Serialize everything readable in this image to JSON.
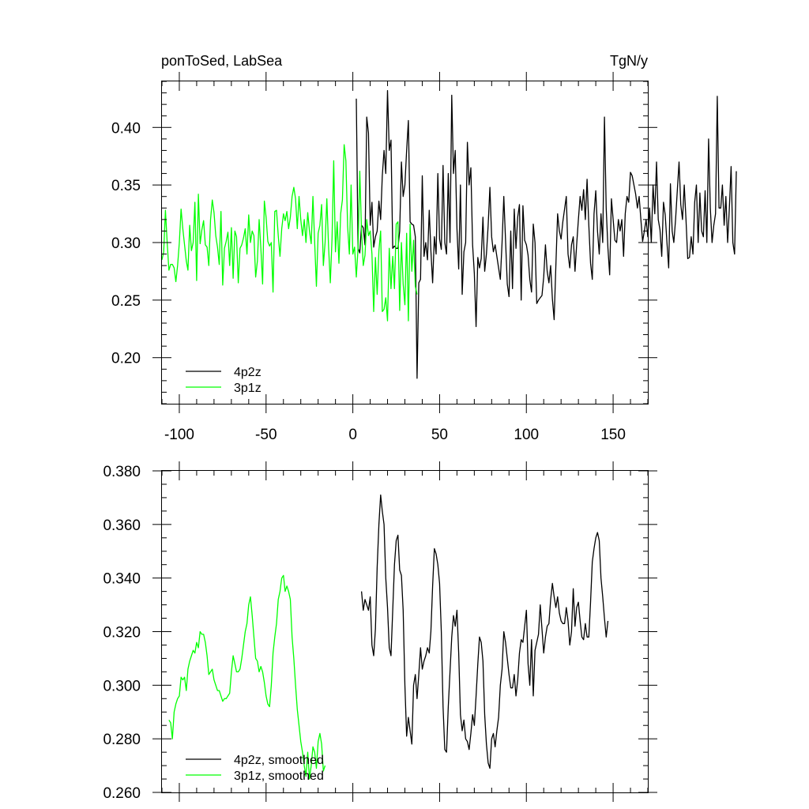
{
  "chart_data": [
    {
      "type": "line",
      "title_left": "ponToSed, LabSea",
      "title_right": "TgN/y",
      "xlim": [
        -110,
        170
      ],
      "ylim": [
        0.16,
        0.44
      ],
      "x_ticks": [
        -100,
        -50,
        0,
        50,
        100,
        150
      ],
      "x_tick_labels": [
        "-100",
        "-50",
        "0",
        "50",
        "100",
        "150"
      ],
      "y_ticks": [
        0.2,
        0.25,
        0.3,
        0.35,
        0.4
      ],
      "y_tick_labels": [
        "0.20",
        "0.25",
        "0.30",
        "0.35",
        "0.40"
      ],
      "legend_position": "bottom-left",
      "series": [
        {
          "name": "4p2z",
          "color": "#000000",
          "x_start": 2,
          "x_step": 1,
          "values": [
            0.425,
            0.295,
            0.291,
            0.315,
            0.313,
            0.298,
            0.409,
            0.395,
            0.315,
            0.335,
            0.296,
            0.305,
            0.31,
            0.336,
            0.32,
            0.358,
            0.38,
            0.36,
            0.432,
            0.38,
            0.389,
            0.295,
            0.297,
            0.295,
            0.295,
            0.31,
            0.37,
            0.34,
            0.35,
            0.38,
            0.406,
            0.318,
            0.316,
            0.315,
            0.305,
            0.182,
            0.265,
            0.268,
            0.358,
            0.288,
            0.3,
            0.285,
            0.328,
            0.293,
            0.265,
            0.305,
            0.29,
            0.36,
            0.303,
            0.294,
            0.367,
            0.3,
            0.29,
            0.36,
            0.3,
            0.428,
            0.36,
            0.38,
            0.312,
            0.277,
            0.35,
            0.255,
            0.292,
            0.3,
            0.387,
            0.35,
            0.365,
            0.298,
            0.273,
            0.227,
            0.287,
            0.278,
            0.286,
            0.322,
            0.275,
            0.29,
            0.315,
            0.348,
            0.305,
            0.292,
            0.298,
            0.288,
            0.278,
            0.268,
            0.3,
            0.34,
            0.302,
            0.264,
            0.253,
            0.31,
            0.26,
            0.329,
            0.295,
            0.322,
            0.333,
            0.25,
            0.332,
            0.302,
            0.298,
            0.289,
            0.268,
            0.257,
            0.316,
            0.3,
            0.247,
            0.25,
            0.252,
            0.254,
            0.27,
            0.298,
            0.275,
            0.265,
            0.28,
            0.251,
            0.233,
            0.28,
            0.325,
            0.31,
            0.303,
            0.318,
            0.329,
            0.34,
            0.29,
            0.278,
            0.298,
            0.305,
            0.275,
            0.298,
            0.32,
            0.34,
            0.328,
            0.346,
            0.32,
            0.355,
            0.315,
            0.282,
            0.268,
            0.325,
            0.345,
            0.31,
            0.29,
            0.325,
            0.3,
            0.409,
            0.33,
            0.295,
            0.272,
            0.338,
            0.32,
            0.302,
            0.3,
            0.32,
            0.31,
            0.32,
            0.288,
            0.325,
            0.34,
            0.335,
            0.361,
            0.358,
            0.35,
            0.342,
            0.33,
            0.34,
            0.32,
            0.301,
            0.31,
            0.32,
            0.305,
            0.33,
            0.3,
            0.35,
            0.325,
            0.37,
            0.32,
            0.311,
            0.288,
            0.335,
            0.324,
            0.3,
            0.278,
            0.351,
            0.31,
            0.3,
            0.32,
            0.345,
            0.37,
            0.333,
            0.32,
            0.35,
            0.32,
            0.286,
            0.287,
            0.305,
            0.29,
            0.335,
            0.35,
            0.3,
            0.343,
            0.31,
            0.305,
            0.345,
            0.3,
            0.39,
            0.33,
            0.3,
            0.315,
            0.325,
            0.427,
            0.33,
            0.33,
            0.35,
            0.315,
            0.34,
            0.3,
            0.33,
            0.366,
            0.3,
            0.29,
            0.362
          ]
        },
        {
          "name": "3p1z",
          "color": "#00ff00",
          "x_start": -110,
          "x_step": 1,
          "values": [
            0.285,
            0.292,
            0.328,
            0.3,
            0.276,
            0.281,
            0.281,
            0.278,
            0.266,
            0.28,
            0.3,
            0.329,
            0.312,
            0.298,
            0.284,
            0.276,
            0.315,
            0.293,
            0.3,
            0.335,
            0.267,
            0.342,
            0.299,
            0.311,
            0.319,
            0.298,
            0.296,
            0.28,
            0.32,
            0.337,
            0.326,
            0.306,
            0.296,
            0.281,
            0.327,
            0.263,
            0.295,
            0.301,
            0.309,
            0.28,
            0.313,
            0.269,
            0.31,
            0.305,
            0.265,
            0.295,
            0.298,
            0.304,
            0.312,
            0.29,
            0.324,
            0.3,
            0.31,
            0.306,
            0.27,
            0.284,
            0.32,
            0.295,
            0.264,
            0.336,
            0.322,
            0.301,
            0.297,
            0.3,
            0.257,
            0.327,
            0.328,
            0.306,
            0.288,
            0.312,
            0.325,
            0.319,
            0.327,
            0.312,
            0.322,
            0.34,
            0.348,
            0.338,
            0.312,
            0.34,
            0.32,
            0.306,
            0.32,
            0.3,
            0.326,
            0.31,
            0.299,
            0.34,
            0.3,
            0.262,
            0.308,
            0.315,
            0.333,
            0.28,
            0.3,
            0.338,
            0.296,
            0.265,
            0.304,
            0.371,
            0.292,
            0.318,
            0.282,
            0.325,
            0.337,
            0.385,
            0.371,
            0.314,
            0.29,
            0.35,
            0.29,
            0.296,
            0.27,
            0.295,
            0.362,
            0.31,
            0.28,
            0.289,
            0.32,
            0.306,
            0.31,
            0.29,
            0.24,
            0.287,
            0.255,
            0.293,
            0.31,
            0.24,
            0.242,
            0.252,
            0.232,
            0.295,
            0.26,
            0.288,
            0.26,
            0.316,
            0.318,
            0.241,
            0.3,
            0.264,
            0.246,
            0.308,
            0.232,
            0.316,
            0.275,
            0.302,
            0.262,
            0.255
          ]
        }
      ]
    },
    {
      "type": "line",
      "xlim": [
        -110,
        170
      ],
      "ylim": [
        0.26,
        0.38
      ],
      "y_ticks": [
        0.26,
        0.28,
        0.3,
        0.32,
        0.34,
        0.36,
        0.38
      ],
      "y_tick_labels": [
        "0.260",
        "0.280",
        "0.300",
        "0.320",
        "0.340",
        "0.360",
        "0.380"
      ],
      "legend_position": "bottom-left",
      "series": [
        {
          "name": "4p2z, smoothed",
          "color": "#000000",
          "x_start": 5,
          "x_step": 1,
          "values": [
            0.335,
            0.328,
            0.332,
            0.33,
            0.328,
            0.333,
            0.315,
            0.311,
            0.321,
            0.344,
            0.36,
            0.371,
            0.365,
            0.36,
            0.34,
            0.329,
            0.314,
            0.311,
            0.328,
            0.345,
            0.354,
            0.356,
            0.343,
            0.341,
            0.328,
            0.3,
            0.281,
            0.288,
            0.283,
            0.278,
            0.3,
            0.304,
            0.295,
            0.304,
            0.314,
            0.306,
            0.309,
            0.311,
            0.314,
            0.312,
            0.32,
            0.337,
            0.351,
            0.349,
            0.345,
            0.338,
            0.32,
            0.292,
            0.276,
            0.275,
            0.292,
            0.305,
            0.318,
            0.326,
            0.322,
            0.328,
            0.312,
            0.289,
            0.283,
            0.287,
            0.28,
            0.279,
            0.276,
            0.282,
            0.289,
            0.285,
            0.296,
            0.308,
            0.318,
            0.316,
            0.309,
            0.289,
            0.278,
            0.271,
            0.269,
            0.28,
            0.282,
            0.277,
            0.283,
            0.288,
            0.3,
            0.306,
            0.32,
            0.316,
            0.31,
            0.304,
            0.299,
            0.299,
            0.304,
            0.296,
            0.302,
            0.312,
            0.317,
            0.316,
            0.322,
            0.328,
            0.308,
            0.3,
            0.317,
            0.296,
            0.313,
            0.316,
            0.319,
            0.33,
            0.321,
            0.312,
            0.318,
            0.322,
            0.323,
            0.332,
            0.338,
            0.333,
            0.329,
            0.333,
            0.327,
            0.324,
            0.323,
            0.323,
            0.329,
            0.324,
            0.315,
            0.32,
            0.336,
            0.322,
            0.329,
            0.331,
            0.324,
            0.318,
            0.317,
            0.323,
            0.318,
            0.318,
            0.331,
            0.346,
            0.351,
            0.355,
            0.357,
            0.354,
            0.34,
            0.333,
            0.325,
            0.318,
            0.324
          ]
        },
        {
          "name": "3p1z, smoothed",
          "color": "#00ff00",
          "x_start": -106,
          "x_step": 1,
          "values": [
            0.287,
            0.286,
            0.28,
            0.29,
            0.293,
            0.295,
            0.296,
            0.303,
            0.302,
            0.303,
            0.298,
            0.306,
            0.309,
            0.311,
            0.313,
            0.312,
            0.316,
            0.314,
            0.32,
            0.319,
            0.319,
            0.316,
            0.311,
            0.304,
            0.305,
            0.306,
            0.302,
            0.3,
            0.298,
            0.298,
            0.296,
            0.294,
            0.295,
            0.295,
            0.296,
            0.297,
            0.305,
            0.311,
            0.308,
            0.305,
            0.305,
            0.306,
            0.31,
            0.315,
            0.32,
            0.323,
            0.33,
            0.333,
            0.326,
            0.318,
            0.31,
            0.309,
            0.305,
            0.307,
            0.305,
            0.301,
            0.296,
            0.293,
            0.292,
            0.3,
            0.312,
            0.318,
            0.323,
            0.332,
            0.335,
            0.34,
            0.341,
            0.335,
            0.337,
            0.335,
            0.332,
            0.318,
            0.31,
            0.3,
            0.291,
            0.285,
            0.279,
            0.275,
            0.27,
            0.266,
            0.275,
            0.265,
            0.27,
            0.277,
            0.275,
            0.269,
            0.279,
            0.282,
            0.278,
            0.268,
            0.27
          ]
        }
      ]
    }
  ]
}
